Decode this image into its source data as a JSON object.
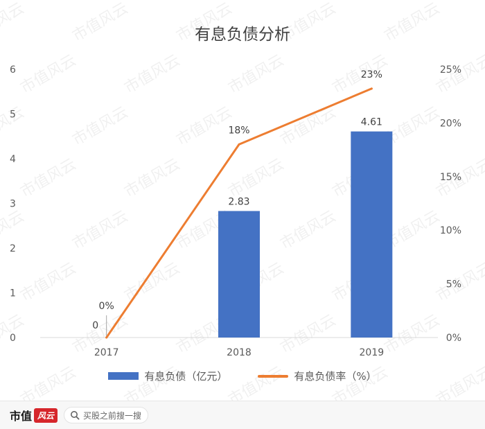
{
  "chart_data": {
    "type": "bar",
    "title": "有息负债分析",
    "categories": [
      "2017",
      "2018",
      "2019"
    ],
    "series": [
      {
        "name": "有息负债（亿元）",
        "type": "bar",
        "axis": "left",
        "values": [
          0,
          2.83,
          4.61
        ],
        "labels": [
          "0",
          "2.83",
          "4.61"
        ],
        "color": "#4472c4"
      },
      {
        "name": "有息负债率（%）",
        "type": "line",
        "axis": "right",
        "values": [
          0,
          18,
          23.2
        ],
        "labels": [
          "0%",
          "18%",
          "23%"
        ],
        "color": "#ed7d31"
      }
    ],
    "y_left": {
      "min": 0,
      "max": 6,
      "ticks": [
        "0",
        "1",
        "2",
        "3",
        "4",
        "5",
        "6"
      ]
    },
    "y_right": {
      "min": 0,
      "max": 25,
      "ticks": [
        "0%",
        "5%",
        "10%",
        "15%",
        "20%",
        "25%"
      ]
    },
    "grid": false,
    "legend": "bottom"
  },
  "watermark": "市值风云",
  "footer": {
    "logo_text": "市值",
    "logo_badge": "风云",
    "search_placeholder": "买股之前搜一搜",
    "search_icon": "search-icon"
  }
}
